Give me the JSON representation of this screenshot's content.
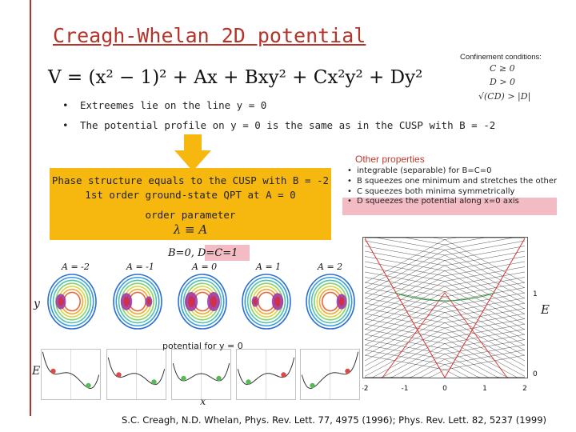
{
  "title": "Creagh-Whelan 2D potential",
  "formula": "V = (x² − 1)² + Ax + Bxy² + Cx²y² + Dy²",
  "confinement": {
    "title": "Confinement conditions:",
    "conditions": [
      "C ≥ 0",
      "D > 0",
      "√(CD) > |D|"
    ]
  },
  "bullets": [
    "Extreemes lie on the line y = 0",
    "The potential profile on y = 0 is the same as in the CUSP with B = -2"
  ],
  "phase_box": {
    "line1": "Phase structure equals to the CUSP with B = -2",
    "line2": "1st order ground-state QPT at A = 0",
    "line3": "order parameter",
    "line4": "λ ≡ A"
  },
  "other": {
    "title": "Other properties",
    "items": [
      "integrable (separable) for B=C=0",
      "B squeezes one minimum and stretches the other",
      "C squeezes both minima symmetrically",
      "D squeezes the potential along x=0 axis"
    ]
  },
  "params_label": "B=0, D=C=1",
  "a_labels": [
    "A = -2",
    "A = -1",
    "A = 0",
    "A = 1",
    "A = 2"
  ],
  "axis": {
    "y": "y",
    "E_left": "E",
    "x": "x",
    "E_right": "E",
    "potential_for": "potential for y = 0"
  },
  "spectrum": {
    "x_ticks": [
      "-2",
      "-1",
      "0",
      "1",
      "2"
    ],
    "y_ticks": [
      "1",
      "0"
    ]
  },
  "citation": "S.C. Creagh, N.D. Whelan, Phys. Rev. Lett. 77, 4975 (1996); Phys. Rev. Lett. 82, 5237 (1999)",
  "colors": {
    "title": "#b5342a",
    "box": "#f6b80f",
    "highlight": "#f3bcc4",
    "arrow": "#f6b80f"
  }
}
